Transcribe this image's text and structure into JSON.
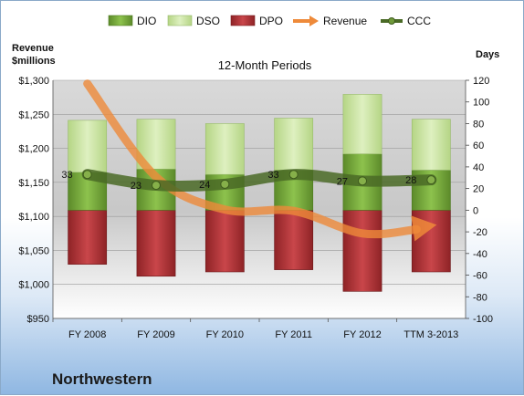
{
  "company": "Northwestern",
  "chart_data": {
    "type": "bar",
    "title": "12-Month Periods",
    "y_left_label_lines": [
      "Revenue",
      "$millions"
    ],
    "y_right_label": "Days",
    "categories": [
      "FY 2008",
      "FY 2009",
      "FY 2010",
      "FY 2011",
      "FY 2012",
      "TTM 3-2013"
    ],
    "y_left_ticks": [
      "$950",
      "$1,000",
      "$1,050",
      "$1,100",
      "$1,150",
      "$1,200",
      "$1,250",
      "$1,300"
    ],
    "y_left_range": [
      950,
      1300
    ],
    "y_right_ticks": [
      "-100",
      "-80",
      "-60",
      "-40",
      "-20",
      "0",
      "20",
      "40",
      "60",
      "80",
      "100",
      "120"
    ],
    "y_right_range": [
      -100,
      120
    ],
    "legend_position": "top",
    "legend": [
      "DIO",
      "DSO",
      "DPO",
      "Revenue",
      "CCC"
    ],
    "series": [
      {
        "name": "DIO",
        "axis": "right",
        "stacked_from": 0,
        "color": "#7cb342",
        "values": [
          35,
          38,
          33,
          37,
          52,
          37
        ]
      },
      {
        "name": "DSO",
        "axis": "right",
        "stacked_on": "DIO",
        "color": "#c9e3a0",
        "values": [
          48,
          46,
          47,
          48,
          55,
          47
        ]
      },
      {
        "name": "DPO",
        "axis": "right",
        "below_zero": true,
        "color": "#b8393c",
        "values": [
          50,
          61,
          57,
          55,
          75,
          57
        ]
      },
      {
        "name": "Revenue",
        "axis": "left",
        "type": "line",
        "color": "#ee8a3a",
        "values": [
          1295,
          1158,
          1110,
          1108,
          1075,
          1085
        ]
      },
      {
        "name": "CCC",
        "axis": "right",
        "type": "line",
        "color": "#4a6a26",
        "values": [
          33,
          23,
          24,
          33,
          27,
          28
        ]
      }
    ],
    "ccc_labels": [
      "33",
      "23",
      "24",
      "33",
      "27",
      "28"
    ]
  }
}
